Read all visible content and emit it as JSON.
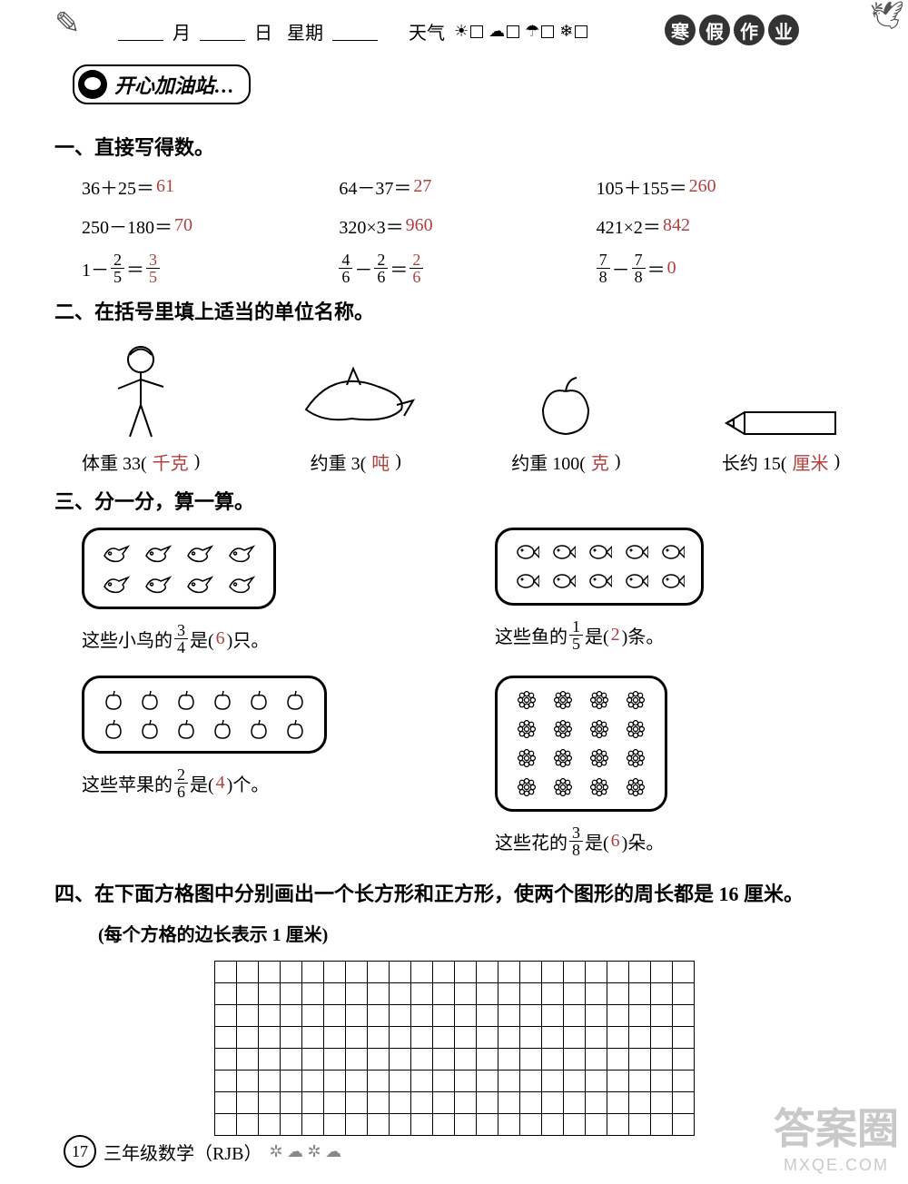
{
  "header": {
    "month_label": "月",
    "day_label": "日",
    "weekday_label": "星期",
    "weather_label": "天气",
    "title_chars": [
      "寒",
      "假",
      "作",
      "业"
    ]
  },
  "banner": {
    "text": "开心加油站…"
  },
  "sec1": {
    "title": "一、直接写得数。",
    "problems": [
      {
        "expr": "36＋25＝",
        "ans": "61"
      },
      {
        "expr": "64－37＝",
        "ans": "27"
      },
      {
        "expr": "105＋155＝",
        "ans": "260"
      },
      {
        "expr": "250－180＝",
        "ans": "70"
      },
      {
        "expr": "320×3＝",
        "ans": "960"
      },
      {
        "expr": "421×2＝",
        "ans": "842"
      }
    ],
    "frac_problems": [
      {
        "pre": "1－",
        "f1n": "2",
        "f1d": "5",
        "mid": "＝",
        "f2n": "3",
        "f2d": "5",
        "ans_color": "#b04040"
      },
      {
        "pre": "",
        "f1n": "4",
        "f1d": "6",
        "mid": "－",
        "f2n": "2",
        "f2d": "6",
        "post": "＝",
        "f3n": "2",
        "f3d": "6",
        "ans_color": "#b04040"
      },
      {
        "pre": "",
        "f1n": "7",
        "f1d": "8",
        "mid": "－",
        "f2n": "7",
        "f2d": "8",
        "post": "＝",
        "plain_ans": "0",
        "ans_color": "#b04040"
      }
    ]
  },
  "sec2": {
    "title": "二、在括号里填上适当的单位名称。",
    "items": [
      {
        "label_pre": "体重 33(",
        "ans": "千克",
        "label_post": ")"
      },
      {
        "label_pre": "约重 3(",
        "ans": "吨",
        "label_post": ")"
      },
      {
        "label_pre": "约重 100(",
        "ans": "克",
        "label_post": ")"
      },
      {
        "label_pre": "长约 15(",
        "ans": "厘米",
        "label_post": ")"
      }
    ]
  },
  "sec3": {
    "title": "三、分一分，算一算。",
    "items": [
      {
        "pre": "这些小鸟的",
        "fn": "3",
        "fd": "4",
        "mid": "是(",
        "ans": "6",
        "post": ")只。",
        "rows": 2,
        "cols": 4,
        "icon": "bird"
      },
      {
        "pre": "这些鱼的",
        "fn": "1",
        "fd": "5",
        "mid": "是(",
        "ans": "2",
        "post": ")条。",
        "rows": 2,
        "cols": 5,
        "icon": "fish"
      },
      {
        "pre": "这些苹果的",
        "fn": "2",
        "fd": "6",
        "mid": "是(",
        "ans": "4",
        "post": ")个。",
        "rows": 2,
        "cols": 6,
        "icon": "apple"
      },
      {
        "pre": "这些花的",
        "fn": "3",
        "fd": "8",
        "mid": "是(",
        "ans": "6",
        "post": ")朵。",
        "rows": 4,
        "cols": 4,
        "icon": "flower"
      }
    ]
  },
  "sec4": {
    "title": "四、在下面方格图中分别画出一个长方形和正方形，使两个图形的周长都是 16 厘米。",
    "sub": "(每个方格的边长表示 1 厘米)",
    "grid_rows": 8,
    "grid_cols": 22
  },
  "footer": {
    "page": "17",
    "text": "三年级数学（RJB）"
  },
  "watermark": {
    "big": "答案圈",
    "small": "MXQE.COM"
  }
}
